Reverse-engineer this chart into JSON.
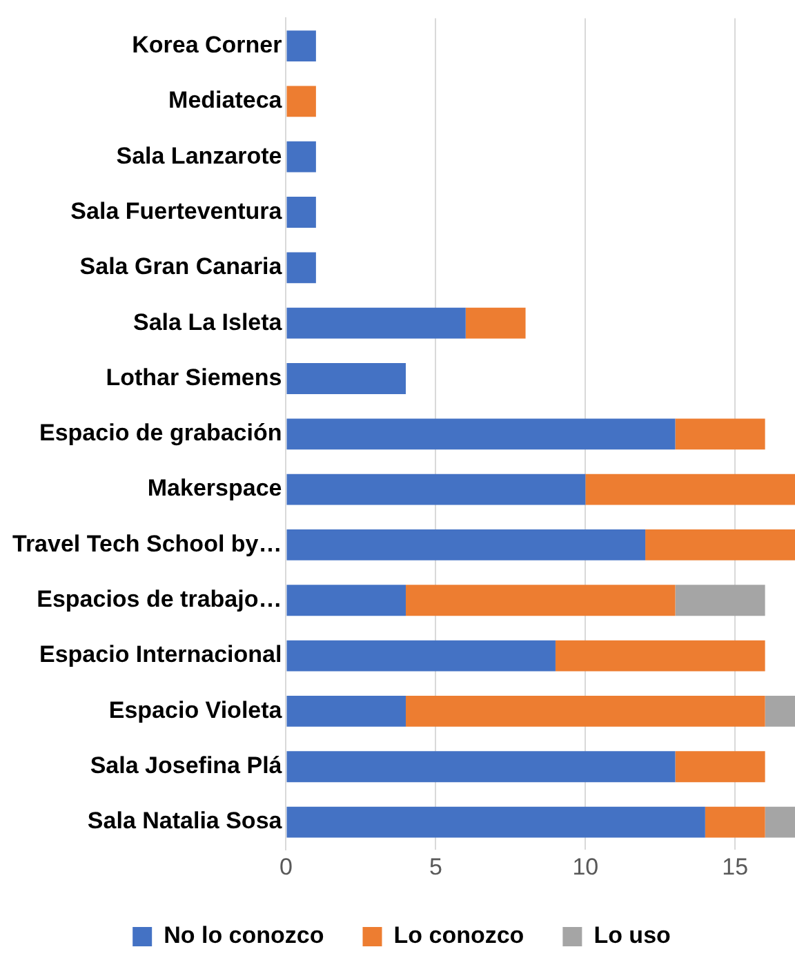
{
  "chart_data": {
    "type": "bar",
    "orientation": "horizontal",
    "stacked": true,
    "categories": [
      "Korea Corner",
      "Mediateca",
      "Sala Lanzarote",
      "Sala Fuerteventura",
      "Sala Gran Canaria",
      "Sala La Isleta",
      "Lothar Siemens",
      "Espacio de grabación",
      "Makerspace",
      "Travel Tech School by…",
      "Espacios de trabajo…",
      "Espacio Internacional",
      "Espacio Violeta",
      "Sala Josefina Plá",
      "Sala Natalia Sosa"
    ],
    "series": [
      {
        "name": "No lo conozco",
        "color": "#4472c4",
        "values": [
          1,
          0,
          1,
          1,
          1,
          6,
          4,
          13,
          10,
          12,
          4,
          9,
          4,
          13,
          14
        ]
      },
      {
        "name": "Lo conozco",
        "color": "#ed7d31",
        "values": [
          0,
          1,
          0,
          0,
          0,
          2,
          0,
          3,
          7,
          5,
          9,
          7,
          12,
          3,
          2
        ]
      },
      {
        "name": "Lo uso",
        "color": "#a5a5a5",
        "values": [
          0,
          0,
          0,
          0,
          0,
          0,
          0,
          0,
          0,
          0,
          3,
          0,
          1,
          0,
          1
        ]
      }
    ],
    "xlim": [
      0,
      17
    ],
    "xticks": [
      0,
      5,
      10,
      15
    ],
    "grid": "x",
    "legend": "bottom"
  }
}
